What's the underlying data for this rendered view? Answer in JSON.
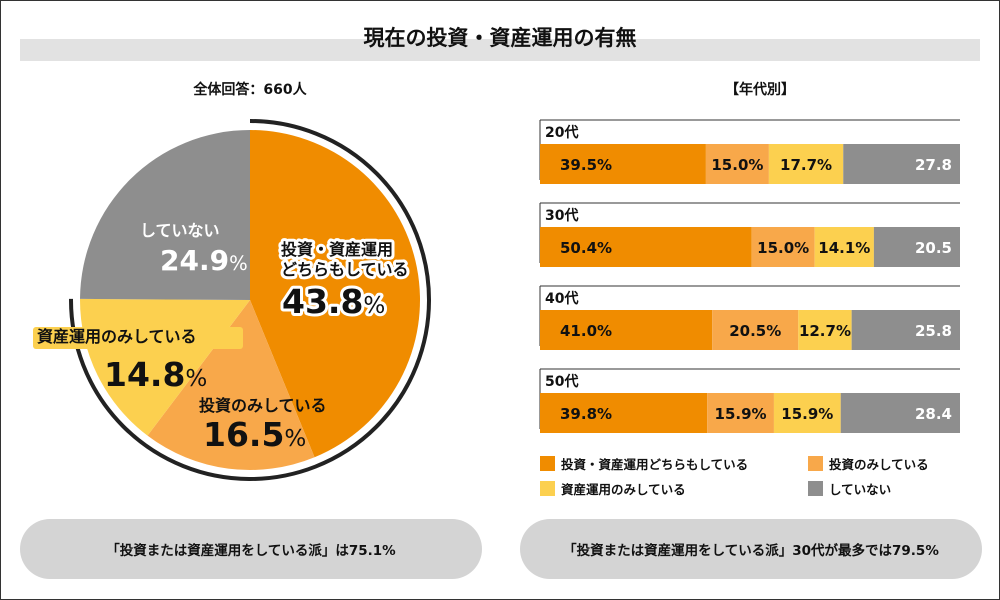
{
  "title": "現在の投資・資産運用の有無",
  "pie_subtitle": "全体回答：660人",
  "bar_subtitle": "【年代別】",
  "pie_labels": {
    "both": "投資・資産運用\nどちらもしている",
    "invest_only": "投資のみしている",
    "asset_only": "資産運用のみしている",
    "none": "していない"
  },
  "summary_left": "「投資または資産運用をしている派」は75.1%",
  "summary_right": "「投資または資産運用をしている派」30代が最多では79.5%",
  "colors": {
    "both": "#f08c00",
    "invest_only": "#f8a84a",
    "asset_only": "#fcd04f",
    "none": "#8e8e8e"
  },
  "chart_data": [
    {
      "type": "pie",
      "title": "全体回答：660人",
      "slices": [
        {
          "key": "both",
          "label": "投資・資産運用どちらもしている",
          "value": 43.8
        },
        {
          "key": "invest_only",
          "label": "投資のみしている",
          "value": 16.5
        },
        {
          "key": "asset_only",
          "label": "資産運用のみしている",
          "value": 14.8
        },
        {
          "key": "none",
          "label": "していない",
          "value": 24.9
        }
      ]
    },
    {
      "type": "bar",
      "orientation": "horizontal",
      "stacked": true,
      "title": "【年代別】",
      "categories": [
        "20代",
        "30代",
        "40代",
        "50代"
      ],
      "series": [
        {
          "key": "both",
          "name": "投資・資産運用どちらもしている",
          "values": [
            39.5,
            50.4,
            41.0,
            39.8
          ],
          "labels": [
            "39.5%",
            "50.4%",
            "41.0%",
            "39.8%"
          ]
        },
        {
          "key": "invest_only",
          "name": "投資のみしている",
          "values": [
            15.0,
            15.0,
            20.5,
            15.9
          ],
          "labels": [
            "15.0%",
            "15.0%",
            "20.5%",
            "15.9%"
          ]
        },
        {
          "key": "asset_only",
          "name": "資産運用のみしている",
          "values": [
            17.7,
            14.1,
            12.7,
            15.9
          ],
          "labels": [
            "17.7%",
            "14.1%",
            "12.7%",
            "15.9%"
          ]
        },
        {
          "key": "none",
          "name": "していない",
          "values": [
            27.8,
            20.5,
            25.8,
            28.4
          ],
          "labels": [
            "27.8",
            "20.5",
            "25.8",
            "28.4"
          ]
        }
      ],
      "legend_placement": "bottom"
    }
  ]
}
